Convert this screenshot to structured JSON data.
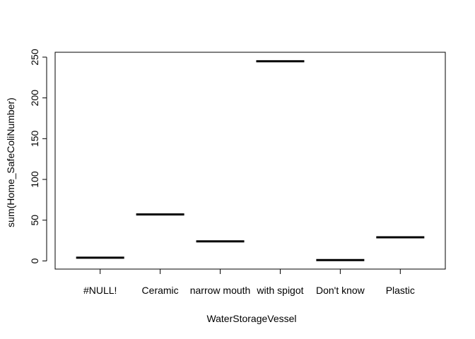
{
  "chart_data": {
    "type": "line",
    "title": "",
    "xlabel": "WaterStorageVessel",
    "ylabel": "sum(Home_SafeColiNumber)",
    "categories": [
      "#NULL!",
      "Ceramic",
      "narrow mouth",
      "with spigot",
      "Don't know",
      "Plastic"
    ],
    "series": [
      {
        "values": [
          4,
          57,
          24,
          245,
          1,
          29
        ]
      }
    ],
    "ylim": [
      -10,
      256
    ],
    "yticks": [
      0,
      50,
      100,
      150,
      200,
      250
    ],
    "grid": false,
    "legend": "none"
  }
}
